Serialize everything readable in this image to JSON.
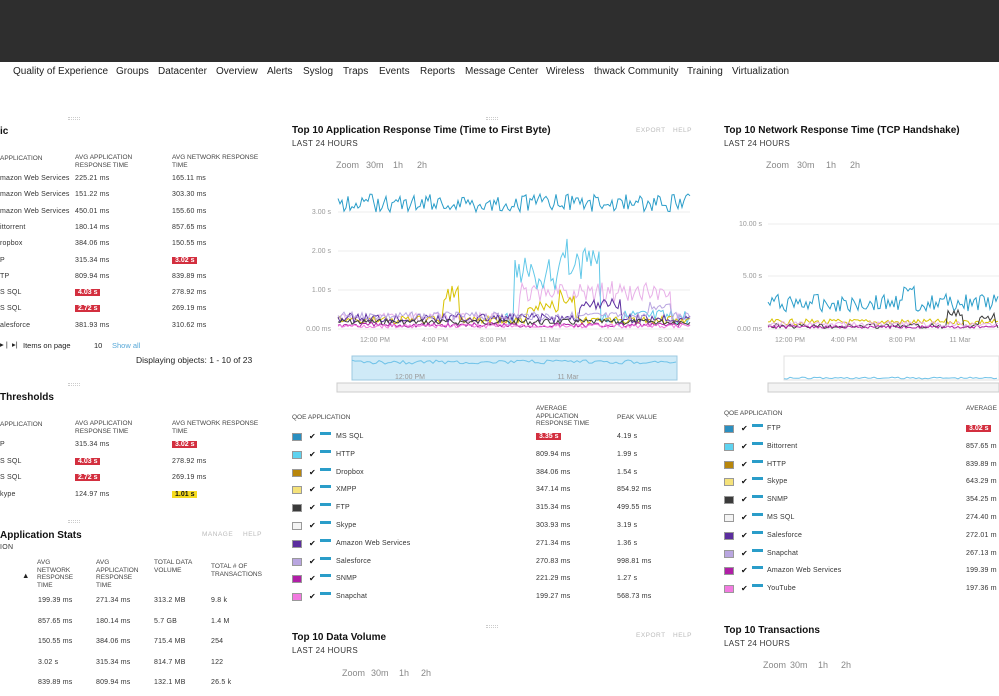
{
  "nav": [
    "Quality of Experience",
    "Groups",
    "Datacenter",
    "Overview",
    "Alerts",
    "Syslog",
    "Traps",
    "Events",
    "Reports",
    "Message Center",
    "Wireless",
    "thwack Community",
    "Training",
    "Virtualization"
  ],
  "left": {
    "panel1": {
      "title": "ic",
      "headers": [
        "APPLICATION",
        "AVG APPLICATION RESPONSE TIME",
        "AVG NETWORK RESPONSE TIME"
      ],
      "rows": [
        {
          "app": "mazon Web Services",
          "art": "225.21 ms",
          "nrt": "165.11 ms",
          "art_flag": "",
          "nrt_flag": ""
        },
        {
          "app": "mazon Web Services",
          "art": "151.22 ms",
          "nrt": "303.30 ms",
          "art_flag": "",
          "nrt_flag": ""
        },
        {
          "app": "mazon Web Services",
          "art": "450.01 ms",
          "nrt": "155.60 ms",
          "art_flag": "",
          "nrt_flag": ""
        },
        {
          "app": "ittorrent",
          "art": "180.14 ms",
          "nrt": "857.65 ms",
          "art_flag": "",
          "nrt_flag": ""
        },
        {
          "app": "ropbox",
          "art": "384.06 ms",
          "nrt": "150.55 ms",
          "art_flag": "",
          "nrt_flag": ""
        },
        {
          "app": "P",
          "art": "315.34 ms",
          "nrt": "3.02 s",
          "art_flag": "",
          "nrt_flag": "red"
        },
        {
          "app": "TP",
          "art": "809.94 ms",
          "nrt": "839.89 ms",
          "art_flag": "",
          "nrt_flag": ""
        },
        {
          "app": "S SQL",
          "art": "4.03 s",
          "nrt": "278.92 ms",
          "art_flag": "red",
          "nrt_flag": ""
        },
        {
          "app": "S SQL",
          "art": "2.72 s",
          "nrt": "269.19 ms",
          "art_flag": "red",
          "nrt_flag": ""
        },
        {
          "app": "alesforce",
          "art": "381.93 ms",
          "nrt": "310.62 ms",
          "art_flag": "",
          "nrt_flag": ""
        }
      ],
      "pager": "Items on page",
      "page_size": "10",
      "show_all": "Show all",
      "displaying": "Displaying objects: 1 - 10 of 23"
    },
    "panel2": {
      "title": "Thresholds",
      "headers": [
        "APPLICATION",
        "AVG APPLICATION RESPONSE TIME",
        "AVG NETWORK RESPONSE TIME"
      ],
      "rows": [
        {
          "app": "P",
          "art": "315.34 ms",
          "nrt": "3.02 s",
          "art_flag": "",
          "nrt_flag": "red"
        },
        {
          "app": "S SQL",
          "art": "4.03 s",
          "nrt": "278.92 ms",
          "art_flag": "red",
          "nrt_flag": ""
        },
        {
          "app": "S SQL",
          "art": "2.72 s",
          "nrt": "269.19 ms",
          "art_flag": "red",
          "nrt_flag": ""
        },
        {
          "app": "kype",
          "art": "124.97 ms",
          "nrt": "1.01 s",
          "art_flag": "",
          "nrt_flag": "yel"
        }
      ]
    },
    "panel3": {
      "title": "Application Stats",
      "subtitle": "ION",
      "manage": "MANAGE",
      "help": "HELP",
      "headers": [
        "AVG NETWORK RESPONSE TIME",
        "AVG APPLICATION RESPONSE TIME",
        "TOTAL DATA VOLUME",
        "TOTAL # OF TRANSACTIONS"
      ],
      "rows": [
        [
          "199.39 ms",
          "271.34 ms",
          "313.2 MB",
          "9.8 k"
        ],
        [
          "857.65 ms",
          "180.14 ms",
          "5.7 GB",
          "1.4 M"
        ],
        [
          "150.55 ms",
          "384.06 ms",
          "715.4 MB",
          "254"
        ],
        [
          "3.02 s",
          "315.34 ms",
          "814.7 MB",
          "122"
        ],
        [
          "839.89 ms",
          "809.94 ms",
          "132.1 MB",
          "26.5 k"
        ]
      ]
    }
  },
  "mid": {
    "title": "Top 10 Application Response Time (Time to First Byte)",
    "subtitle": "LAST 24 HOURS",
    "export": "EXPORT",
    "help": "HELP",
    "zoom": [
      "Zoom",
      "30m",
      "1h",
      "2h"
    ],
    "yticks": [
      "3.00 s",
      "2.00 s",
      "1.00 s",
      "0.00 ms"
    ],
    "xticks": [
      "12:00 PM",
      "4:00 PM",
      "8:00 PM",
      "11 Mar",
      "4:00 AM",
      "8:00 AM"
    ],
    "nav_labels": [
      "12:00 PM",
      "11 Mar"
    ],
    "table_headers": [
      "QOE APPLICATION",
      "AVERAGE APPLICATION RESPONSE TIME",
      "PEAK VALUE"
    ],
    "rows": [
      {
        "name": "MS SQL",
        "avg": "3.35 s",
        "peak": "4.19 s",
        "color": "#2a8fc0",
        "flag": "red"
      },
      {
        "name": "HTTP",
        "avg": "809.94 ms",
        "peak": "1.99 s",
        "color": "#5fd3f0",
        "flag": ""
      },
      {
        "name": "Dropbox",
        "avg": "384.06 ms",
        "peak": "1.54 s",
        "color": "#b8860b",
        "flag": ""
      },
      {
        "name": "XMPP",
        "avg": "347.14 ms",
        "peak": "854.92 ms",
        "color": "#f5e27a",
        "flag": ""
      },
      {
        "name": "FTP",
        "avg": "315.34 ms",
        "peak": "499.55 ms",
        "color": "#3a3a3a",
        "flag": ""
      },
      {
        "name": "Skype",
        "avg": "303.93 ms",
        "peak": "3.19 s",
        "color": "#f4f4f4",
        "flag": ""
      },
      {
        "name": "Amazon Web Services",
        "avg": "271.34 ms",
        "peak": "1.36 s",
        "color": "#5b2d9e",
        "flag": ""
      },
      {
        "name": "Salesforce",
        "avg": "270.83 ms",
        "peak": "998.81 ms",
        "color": "#b9a6e0",
        "flag": ""
      },
      {
        "name": "SNMP",
        "avg": "221.29 ms",
        "peak": "1.27 s",
        "color": "#b01ea6",
        "flag": ""
      },
      {
        "name": "Snapchat",
        "avg": "199.27 ms",
        "peak": "568.73 ms",
        "color": "#f27ae0",
        "flag": ""
      }
    ],
    "volume": {
      "title": "Top 10 Data Volume",
      "subtitle": "LAST 24 HOURS",
      "export": "EXPORT",
      "help": "HELP",
      "zoom": [
        "Zoom",
        "30m",
        "1h",
        "2h"
      ]
    }
  },
  "right": {
    "title": "Top 10 Network Response Time (TCP Handshake)",
    "subtitle": "LAST 24 HOURS",
    "zoom": [
      "Zoom",
      "30m",
      "1h",
      "2h"
    ],
    "yticks": [
      "10.00 s",
      "5.00 s",
      "0.00 ms"
    ],
    "xticks": [
      "12:00 PM",
      "4:00 PM",
      "8:00 PM",
      "11 Mar"
    ],
    "table_headers": [
      "QOE APPLICATION",
      "AVERAGE"
    ],
    "rows": [
      {
        "name": "FTP",
        "avg": "3.02 s",
        "color": "#2a8fc0",
        "flag": "red"
      },
      {
        "name": "Bittorrent",
        "avg": "857.65 m",
        "color": "#5fd3f0",
        "flag": ""
      },
      {
        "name": "HTTP",
        "avg": "839.89 m",
        "color": "#b8860b",
        "flag": ""
      },
      {
        "name": "Skype",
        "avg": "643.29 m",
        "color": "#f5e27a",
        "flag": ""
      },
      {
        "name": "SNMP",
        "avg": "354.25 m",
        "color": "#3a3a3a",
        "flag": ""
      },
      {
        "name": "MS SQL",
        "avg": "274.40 m",
        "color": "#f4f4f4",
        "flag": ""
      },
      {
        "name": "Salesforce",
        "avg": "272.01 m",
        "color": "#5b2d9e",
        "flag": ""
      },
      {
        "name": "Snapchat",
        "avg": "267.13 m",
        "color": "#b9a6e0",
        "flag": ""
      },
      {
        "name": "Amazon Web Services",
        "avg": "199.39 m",
        "color": "#b01ea6",
        "flag": ""
      },
      {
        "name": "YouTube",
        "avg": "197.36 m",
        "color": "#f27ae0",
        "flag": ""
      }
    ],
    "transactions": {
      "title": "Top 10 Transactions",
      "subtitle": "LAST 24 HOURS",
      "zoom": [
        "Zoom",
        "30m",
        "1h",
        "2h"
      ]
    }
  }
}
